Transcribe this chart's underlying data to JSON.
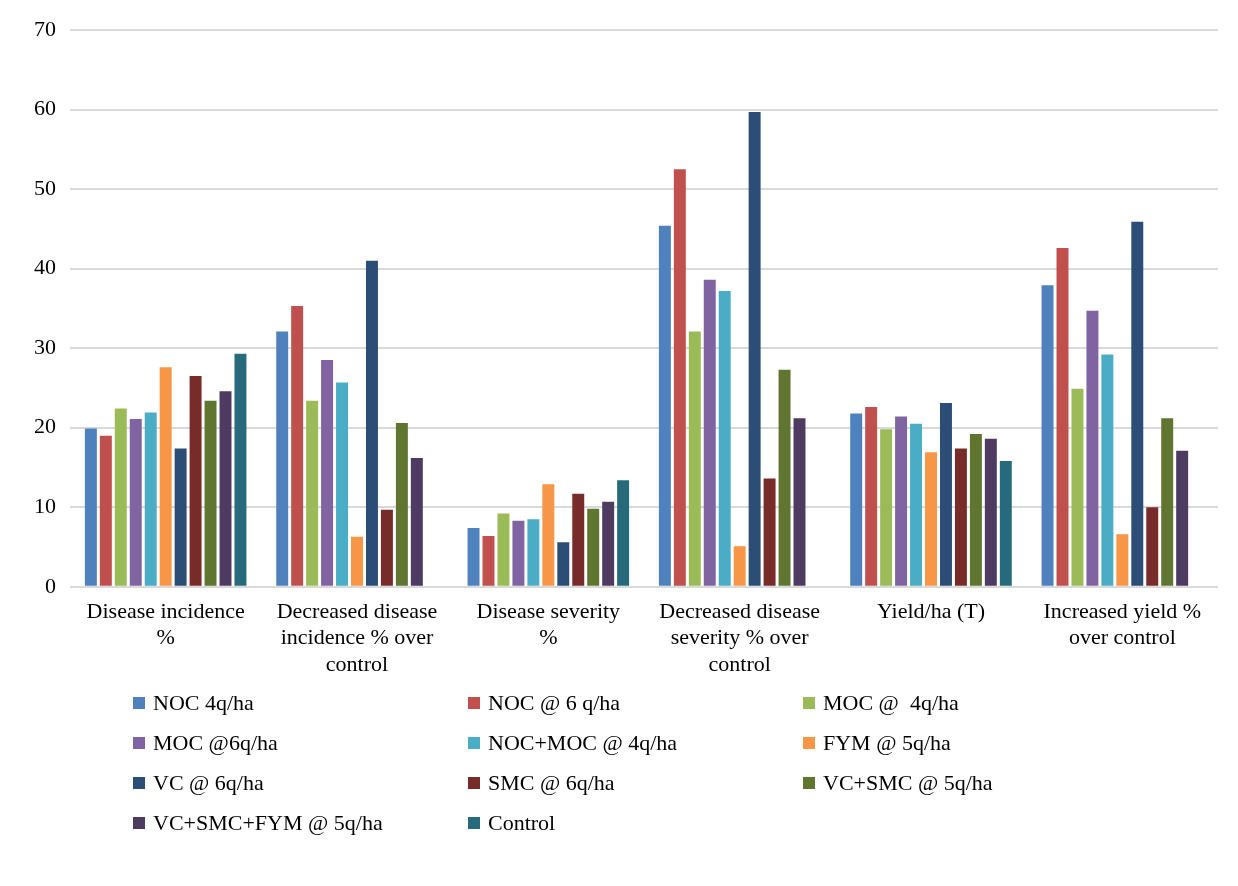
{
  "chart_data": {
    "type": "bar",
    "categories": [
      "Disease incidence %",
      "Decreased disease incidence % over control",
      "Disease severity %",
      "Decreased disease severity % over control",
      "Yield/ha (T)",
      "Increased yield % over control"
    ],
    "ylim": [
      0,
      70
    ],
    "yticks": [
      0,
      10,
      20,
      30,
      40,
      50,
      60,
      70
    ],
    "grid": "y",
    "legend": "bottom",
    "series": [
      {
        "name": "NOC 4q/ha",
        "color": "#4f81bd",
        "values": [
          19.9,
          32.1,
          7.4,
          45.4,
          21.8,
          37.9
        ]
      },
      {
        "name": "NOC @ 6 q/ha",
        "color": "#c0504d",
        "values": [
          19.0,
          35.3,
          6.4,
          52.5,
          22.6,
          42.6
        ]
      },
      {
        "name": "MOC @  4q/ha",
        "color": "#9bbb59",
        "values": [
          22.4,
          23.4,
          9.2,
          32.1,
          19.8,
          24.9
        ]
      },
      {
        "name": "MOC @6q/ha",
        "color": "#8064a2",
        "values": [
          21.1,
          28.5,
          8.3,
          38.6,
          21.4,
          34.7
        ]
      },
      {
        "name": "NOC+MOC @ 4q/ha",
        "color": "#4bacc6",
        "values": [
          21.9,
          25.7,
          8.5,
          37.2,
          20.5,
          29.2
        ]
      },
      {
        "name": "FYM @ 5q/ha",
        "color": "#f79646",
        "values": [
          27.6,
          6.3,
          12.9,
          5.1,
          16.9,
          6.6
        ]
      },
      {
        "name": "VC @ 6q/ha",
        "color": "#2c4d75",
        "values": [
          17.4,
          41.0,
          5.6,
          59.7,
          23.1,
          45.9
        ]
      },
      {
        "name": "SMC @ 6q/ha",
        "color": "#772c2a",
        "values": [
          26.5,
          9.7,
          11.7,
          13.6,
          17.4,
          10.0
        ]
      },
      {
        "name": "VC+SMC @ 5q/ha",
        "color": "#5f7530",
        "values": [
          23.4,
          20.6,
          9.8,
          27.3,
          19.2,
          21.2
        ]
      },
      {
        "name": "VC+SMC+FYM @ 5q/ha",
        "color": "#4d3b62",
        "values": [
          24.6,
          16.2,
          10.7,
          21.2,
          18.6,
          17.1
        ]
      },
      {
        "name": "Control",
        "color": "#276a7c",
        "values": [
          29.3,
          null,
          13.4,
          null,
          15.8,
          null
        ]
      }
    ]
  }
}
